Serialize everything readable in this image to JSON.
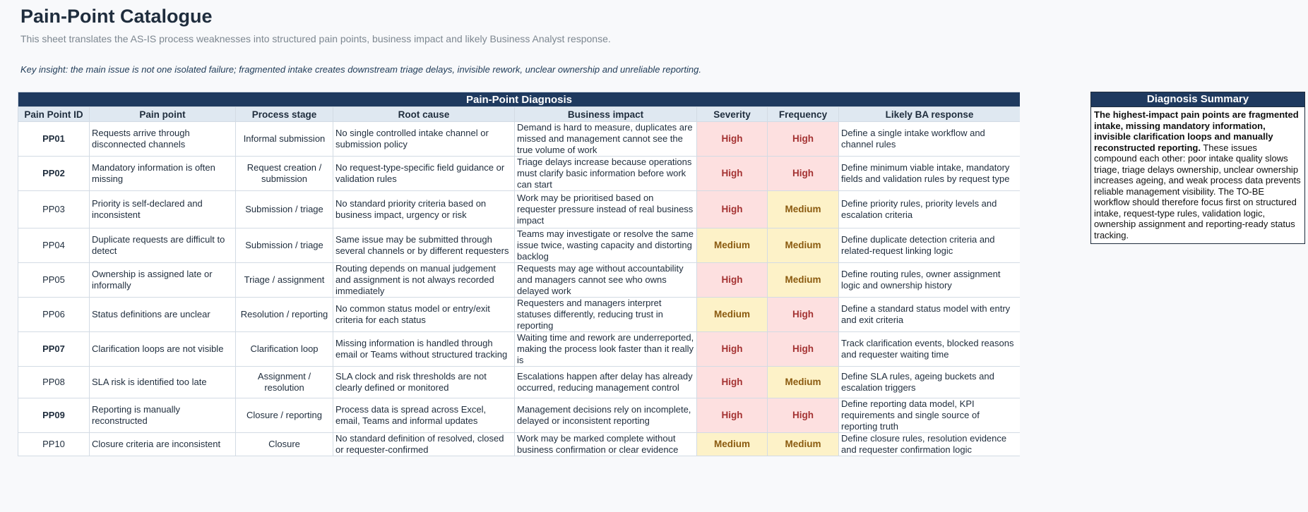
{
  "header": {
    "title": "Pain-Point Catalogue",
    "subtitle": "This sheet translates the AS-IS process weaknesses into structured pain points, business impact and likely Business Analyst response.",
    "insight": "Key insight: the main issue is not one isolated failure; fragmented intake creates downstream triage delays, invisible rework, unclear ownership and unreliable reporting."
  },
  "table": {
    "band_title": "Pain-Point Diagnosis",
    "columns": [
      "Pain Point ID",
      "Pain point",
      "Process stage",
      "Root cause",
      "Business impact",
      "Severity",
      "Frequency",
      "Likely BA response"
    ],
    "rows": [
      {
        "id": "PP01",
        "id_bold": true,
        "pain": "Requests arrive through disconnected channels",
        "stage": "Informal submission",
        "root": "No single controlled intake channel or submission policy",
        "impact": "Demand is hard to measure, duplicates are missed and management cannot see the true volume of work",
        "severity": "High",
        "frequency": "High",
        "response": "Define a single intake workflow and channel rules"
      },
      {
        "id": "PP02",
        "id_bold": true,
        "pain": "Mandatory information is often missing",
        "stage": "Request creation / submission",
        "root": "No request-type-specific field guidance or validation rules",
        "impact": "Triage delays increase because operations must clarify basic information before work can start",
        "severity": "High",
        "frequency": "High",
        "response": "Define minimum viable intake, mandatory fields and validation rules by request type"
      },
      {
        "id": "PP03",
        "id_bold": false,
        "pain": "Priority is self-declared and inconsistent",
        "stage": "Submission / triage",
        "root": "No standard priority criteria based on business impact, urgency or risk",
        "impact": "Work may be prioritised based on requester pressure instead of real business impact",
        "severity": "High",
        "frequency": "Medium",
        "response": "Define priority rules, priority levels and escalation criteria"
      },
      {
        "id": "PP04",
        "id_bold": false,
        "pain": "Duplicate requests are difficult to detect",
        "stage": "Submission / triage",
        "root": "Same issue may be submitted through several channels or by different requesters",
        "impact": "Teams may investigate or resolve the same issue twice, wasting capacity and distorting backlog",
        "severity": "Medium",
        "frequency": "Medium",
        "response": "Define duplicate detection criteria and related-request linking logic"
      },
      {
        "id": "PP05",
        "id_bold": false,
        "pain": "Ownership is assigned late or informally",
        "stage": "Triage / assignment",
        "root": "Routing depends on manual judgement and assignment is not always recorded immediately",
        "impact": "Requests may age without accountability and managers cannot see who owns delayed work",
        "severity": "High",
        "frequency": "Medium",
        "response": "Define routing rules, owner assignment logic and ownership history"
      },
      {
        "id": "PP06",
        "id_bold": false,
        "pain": "Status definitions are unclear",
        "stage": "Resolution / reporting",
        "root": "No common status model or entry/exit criteria for each status",
        "impact": "Requesters and managers interpret statuses differently, reducing trust in reporting",
        "severity": "Medium",
        "frequency": "High",
        "response": "Define a standard status model with entry and exit criteria"
      },
      {
        "id": "PP07",
        "id_bold": true,
        "pain": "Clarification loops are not visible",
        "stage": "Clarification loop",
        "root": "Missing information is handled through email or Teams without structured tracking",
        "impact": "Waiting time and rework are underreported, making the process look faster than it really is",
        "severity": "High",
        "frequency": "High",
        "response": "Track clarification events, blocked reasons and requester waiting time"
      },
      {
        "id": "PP08",
        "id_bold": false,
        "pain": "SLA risk is identified too late",
        "stage": "Assignment / resolution",
        "root": "SLA clock and risk thresholds are not clearly defined or monitored",
        "impact": "Escalations happen after delay has already occurred, reducing management control",
        "severity": "High",
        "frequency": "Medium",
        "response": "Define SLA rules, ageing buckets and escalation triggers"
      },
      {
        "id": "PP09",
        "id_bold": true,
        "pain": "Reporting is manually reconstructed",
        "stage": "Closure / reporting",
        "root": "Process data is spread across Excel, email, Teams and informal updates",
        "impact": "Management decisions rely on incomplete, delayed or inconsistent reporting",
        "severity": "High",
        "frequency": "High",
        "response": "Define reporting data model, KPI requirements and single source of reporting truth"
      },
      {
        "id": "PP10",
        "id_bold": false,
        "pain": "Closure criteria are inconsistent",
        "stage": "Closure",
        "root": "No standard definition of resolved, closed or requester-confirmed",
        "impact": "Work may be marked complete without business confirmation or clear evidence",
        "severity": "Medium",
        "frequency": "Medium",
        "response": "Define closure rules, resolution evidence and requester confirmation logic"
      }
    ]
  },
  "summary": {
    "title": "Diagnosis Summary",
    "lead": "The highest-impact pain points are fragmented intake, missing mandatory information, invisible clarification loops and manually reconstructed reporting.",
    "body": " These issues compound each other: poor intake quality slows triage, triage delays ownership, unclear ownership increases ageing, and weak process data prevents reliable management visibility. The TO-BE workflow should therefore focus first on structured intake, request-type rules, validation logic, ownership assignment and reporting-ready status tracking."
  },
  "colors": {
    "band": "#1f3a5f",
    "column_header": "#dfe8f1",
    "high_bg": "#fde0e0",
    "high_text": "#a43333",
    "medium_bg": "#fdf2c8",
    "medium_text": "#8a5a0f"
  }
}
